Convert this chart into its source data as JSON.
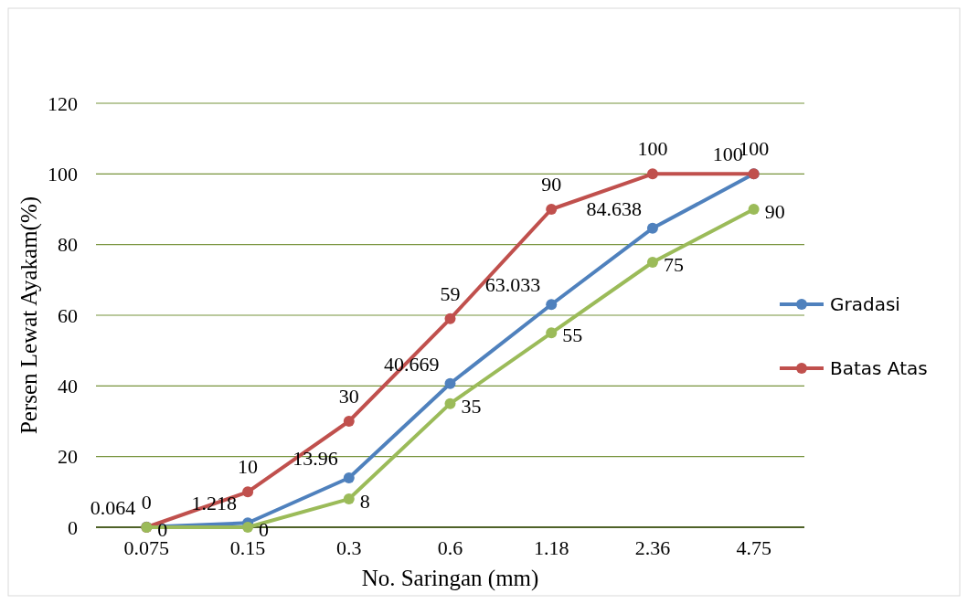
{
  "chart_data": {
    "type": "line",
    "xlabel": "No. Saringan (mm)",
    "ylabel": "Persen Lewat Ayakam(%)",
    "categories": [
      "0.075",
      "0.15",
      "0.3",
      "0.6",
      "1.18",
      "2.36",
      "4.75"
    ],
    "series": [
      {
        "name": "Gradasi",
        "color": "#4f81bd",
        "values": [
          0.064,
          1.218,
          13.96,
          40.669,
          63.033,
          84.638,
          100
        ]
      },
      {
        "name": "Batas Atas",
        "color": "#c0504d",
        "values": [
          0,
          10,
          30,
          59,
          90,
          100,
          100
        ]
      },
      {
        "color": "#9bbb59",
        "values": [
          0,
          0,
          8,
          35,
          55,
          75,
          90
        ]
      }
    ],
    "ylim": [
      0,
      120
    ],
    "yticks": [
      0,
      20,
      40,
      60,
      80,
      100,
      120
    ],
    "grid": "y",
    "legend": "right",
    "marker": "circle",
    "line_style": "solid",
    "data_labels": true
  }
}
